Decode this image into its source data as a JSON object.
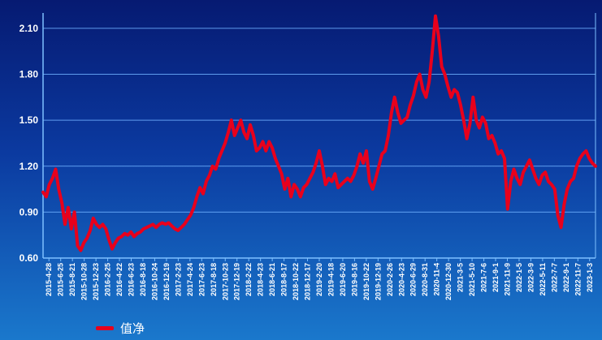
{
  "chart_data": {
    "type": "line",
    "title": "",
    "xlabel": "",
    "ylabel": "",
    "ylim": [
      0.6,
      2.2
    ],
    "yticks": [
      "0.60",
      "0.90",
      "1.20",
      "1.50",
      "1.80",
      "2.10"
    ],
    "xticks": [
      "2015-4-28",
      "2015-6-25",
      "2015-8-21",
      "2015-10-28",
      "2015-12-23",
      "2016-2-25",
      "2016-4-22",
      "2016-6-23",
      "2016-8-18",
      "2016-10-24",
      "2016-12-19",
      "2017-2-23",
      "2017-4-24",
      "2017-6-23",
      "2017-8-18",
      "2017-10-23",
      "2017-12-19",
      "2018-2-22",
      "2018-4-23",
      "2018-6-21",
      "2018-8-17",
      "2018-10-22",
      "2018-12-17",
      "2019-2-20",
      "2019-4-18",
      "2019-6-20",
      "2019-8-16",
      "2019-10-22",
      "2019-12-19",
      "2020-2-26",
      "2020-4-23",
      "2020-6-29",
      "2020-8-31",
      "2020-11-4",
      "2020-12-30",
      "2021-3-5",
      "2021-5-10",
      "2021-7-6",
      "2021-9-1",
      "2021-11-9",
      "2022-1-5",
      "2022-3-9",
      "2022-5-11",
      "2022-7-7",
      "2022-9-1",
      "2022-11-7",
      "2023-1-3"
    ],
    "grid": true,
    "legend_position": "bottom-left",
    "series": [
      {
        "name": "值净",
        "color": "#e8001c",
        "values": [
          1.03,
          1.0,
          1.08,
          1.12,
          1.18,
          1.05,
          0.96,
          0.82,
          0.93,
          0.79,
          0.9,
          0.68,
          0.65,
          0.7,
          0.73,
          0.78,
          0.86,
          0.82,
          0.8,
          0.82,
          0.79,
          0.72,
          0.66,
          0.7,
          0.73,
          0.74,
          0.76,
          0.75,
          0.77,
          0.74,
          0.76,
          0.77,
          0.79,
          0.8,
          0.81,
          0.82,
          0.8,
          0.82,
          0.83,
          0.82,
          0.83,
          0.81,
          0.79,
          0.78,
          0.8,
          0.82,
          0.85,
          0.88,
          0.93,
          1.0,
          1.06,
          1.02,
          1.1,
          1.14,
          1.2,
          1.18,
          1.25,
          1.3,
          1.35,
          1.42,
          1.5,
          1.4,
          1.45,
          1.5,
          1.42,
          1.38,
          1.47,
          1.4,
          1.3,
          1.32,
          1.36,
          1.3,
          1.36,
          1.32,
          1.25,
          1.2,
          1.15,
          1.05,
          1.12,
          1.0,
          1.08,
          1.05,
          1.0,
          1.06,
          1.08,
          1.12,
          1.16,
          1.22,
          1.3,
          1.2,
          1.08,
          1.12,
          1.1,
          1.15,
          1.06,
          1.08,
          1.1,
          1.12,
          1.1,
          1.14,
          1.2,
          1.28,
          1.22,
          1.3,
          1.1,
          1.05,
          1.12,
          1.2,
          1.28,
          1.3,
          1.4,
          1.55,
          1.65,
          1.55,
          1.48,
          1.5,
          1.52,
          1.6,
          1.66,
          1.75,
          1.8,
          1.7,
          1.65,
          1.75,
          1.95,
          2.18,
          2.05,
          1.85,
          1.8,
          1.72,
          1.65,
          1.7,
          1.68,
          1.6,
          1.5,
          1.38,
          1.48,
          1.65,
          1.5,
          1.45,
          1.52,
          1.48,
          1.38,
          1.4,
          1.35,
          1.28,
          1.3,
          1.25,
          0.92,
          1.1,
          1.18,
          1.12,
          1.08,
          1.16,
          1.2,
          1.24,
          1.18,
          1.12,
          1.08,
          1.14,
          1.16,
          1.1,
          1.08,
          1.05,
          0.88,
          0.8,
          0.95,
          1.05,
          1.1,
          1.12,
          1.2,
          1.25,
          1.28,
          1.3,
          1.25,
          1.22,
          1.2
        ]
      }
    ]
  }
}
